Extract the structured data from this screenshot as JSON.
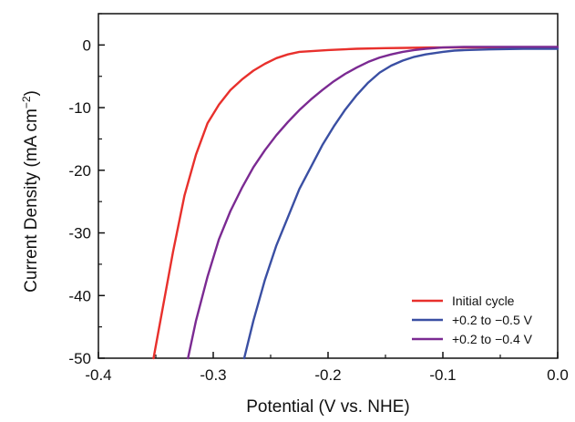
{
  "chart_data": {
    "type": "line",
    "title": "",
    "xlabel": "Potential (V vs. NHE)",
    "ylabel": "Current Density (mA cm",
    "ylabel_unit_sup": "−2",
    "ylabel_close": ")",
    "xlim": [
      -0.4,
      0.0
    ],
    "ylim": [
      -50,
      5
    ],
    "x_ticks": [
      -0.4,
      -0.3,
      -0.2,
      -0.1,
      0.0
    ],
    "x_tick_labels": [
      "-0.4",
      "-0.3",
      "-0.2",
      "-0.1",
      "0.0"
    ],
    "y_ticks": [
      0,
      -10,
      -20,
      -30,
      -40,
      -50
    ],
    "y_tick_labels": [
      "0",
      "-10",
      "-20",
      "-30",
      "-40",
      "-50"
    ],
    "grid": false,
    "legend_position": "bottom-right",
    "series": [
      {
        "name": "Initial cycle",
        "color": "#e8302c",
        "x": [
          -0.352,
          -0.345,
          -0.335,
          -0.325,
          -0.315,
          -0.305,
          -0.295,
          -0.285,
          -0.275,
          -0.265,
          -0.255,
          -0.245,
          -0.235,
          -0.225,
          -0.2,
          -0.175,
          -0.15,
          -0.13,
          -0.11,
          -0.09,
          -0.05,
          0.0
        ],
        "y": [
          -50,
          -43,
          -33,
          -24,
          -17.5,
          -12.5,
          -9.5,
          -7.2,
          -5.5,
          -4.1,
          -3.0,
          -2.1,
          -1.5,
          -1.1,
          -0.8,
          -0.6,
          -0.5,
          -0.45,
          -0.4,
          -0.4,
          -0.4,
          -0.4
        ]
      },
      {
        "name": "+0.2 to −0.5 V",
        "color": "#3a4fa3",
        "x": [
          -0.273,
          -0.265,
          -0.255,
          -0.245,
          -0.235,
          -0.225,
          -0.215,
          -0.205,
          -0.195,
          -0.185,
          -0.175,
          -0.165,
          -0.155,
          -0.145,
          -0.135,
          -0.125,
          -0.115,
          -0.1,
          -0.09,
          -0.08,
          -0.06,
          -0.03,
          0.0
        ],
        "y": [
          -50,
          -44,
          -37.5,
          -32,
          -27.5,
          -23,
          -19.5,
          -16,
          -13,
          -10.3,
          -8,
          -6,
          -4.4,
          -3.3,
          -2.5,
          -1.9,
          -1.5,
          -1.1,
          -0.9,
          -0.8,
          -0.7,
          -0.6,
          -0.6
        ]
      },
      {
        "name": "+0.2 to −0.4 V",
        "color": "#7b2a92",
        "x": [
          -0.322,
          -0.315,
          -0.305,
          -0.295,
          -0.285,
          -0.275,
          -0.265,
          -0.255,
          -0.245,
          -0.235,
          -0.225,
          -0.215,
          -0.205,
          -0.195,
          -0.185,
          -0.175,
          -0.165,
          -0.155,
          -0.145,
          -0.135,
          -0.125,
          -0.115,
          -0.1,
          -0.08,
          -0.05,
          0.0
        ],
        "y": [
          -50,
          -44,
          -37,
          -31,
          -26.5,
          -22.8,
          -19.5,
          -16.8,
          -14.4,
          -12.3,
          -10.4,
          -8.7,
          -7.2,
          -5.8,
          -4.6,
          -3.6,
          -2.7,
          -2.0,
          -1.5,
          -1.1,
          -0.8,
          -0.6,
          -0.4,
          -0.3,
          -0.3,
          -0.3
        ]
      }
    ]
  }
}
